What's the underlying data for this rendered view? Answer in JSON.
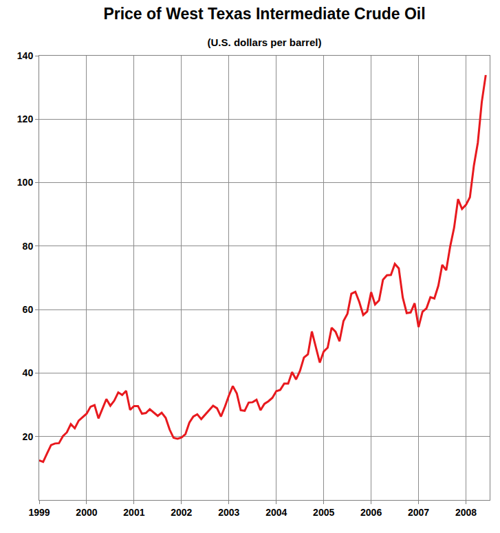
{
  "chart_data": {
    "type": "line",
    "title": "Price of West Texas Intermediate Crude Oil",
    "subtitle": "(U.S. dollars per barrel)",
    "x": [
      1999,
      1999.083,
      1999.167,
      1999.25,
      1999.333,
      1999.417,
      1999.5,
      1999.583,
      1999.667,
      1999.75,
      1999.833,
      1999.917,
      2000,
      2000.083,
      2000.167,
      2000.25,
      2000.333,
      2000.417,
      2000.5,
      2000.583,
      2000.667,
      2000.75,
      2000.833,
      2000.917,
      2001,
      2001.083,
      2001.167,
      2001.25,
      2001.333,
      2001.417,
      2001.5,
      2001.583,
      2001.667,
      2001.75,
      2001.833,
      2001.917,
      2002,
      2002.083,
      2002.167,
      2002.25,
      2002.333,
      2002.417,
      2002.5,
      2002.583,
      2002.667,
      2002.75,
      2002.833,
      2002.917,
      2003,
      2003.083,
      2003.167,
      2003.25,
      2003.333,
      2003.417,
      2003.5,
      2003.583,
      2003.667,
      2003.75,
      2003.833,
      2003.917,
      2004,
      2004.083,
      2004.167,
      2004.25,
      2004.333,
      2004.417,
      2004.5,
      2004.583,
      2004.667,
      2004.75,
      2004.833,
      2004.917,
      2005,
      2005.083,
      2005.167,
      2005.25,
      2005.333,
      2005.417,
      2005.5,
      2005.583,
      2005.667,
      2005.75,
      2005.833,
      2005.917,
      2006,
      2006.083,
      2006.167,
      2006.25,
      2006.333,
      2006.417,
      2006.5,
      2006.583,
      2006.667,
      2006.75,
      2006.833,
      2006.917,
      2007,
      2007.083,
      2007.167,
      2007.25,
      2007.333,
      2007.417,
      2007.5,
      2007.583,
      2007.667,
      2007.75,
      2007.833,
      2007.917,
      2008,
      2008.083,
      2008.167,
      2008.25,
      2008.333,
      2008.417
    ],
    "values": [
      12.5,
      12.0,
      14.7,
      17.3,
      17.8,
      17.9,
      20.1,
      21.3,
      23.9,
      22.6,
      25.0,
      26.1,
      27.2,
      29.4,
      29.9,
      25.7,
      28.8,
      31.8,
      29.7,
      31.3,
      33.9,
      33.1,
      34.4,
      28.4,
      29.6,
      29.6,
      27.2,
      27.4,
      28.6,
      27.6,
      26.5,
      27.5,
      25.9,
      22.2,
      19.6,
      19.3,
      19.7,
      20.7,
      24.4,
      26.3,
      27.0,
      25.5,
      26.9,
      28.4,
      29.7,
      28.9,
      26.3,
      29.4,
      32.9,
      35.9,
      33.6,
      28.3,
      28.1,
      30.7,
      30.8,
      31.6,
      28.3,
      30.3,
      31.1,
      32.2,
      34.3,
      34.7,
      36.7,
      36.7,
      40.3,
      38.0,
      40.7,
      44.9,
      45.9,
      53.1,
      48.5,
      43.3,
      46.8,
      48.0,
      54.3,
      53.0,
      50.0,
      56.4,
      58.7,
      65.0,
      65.6,
      62.4,
      58.3,
      59.4,
      65.5,
      61.6,
      62.9,
      69.4,
      70.8,
      70.9,
      74.4,
      73.0,
      63.8,
      58.9,
      59.1,
      62.0,
      54.5,
      59.3,
      60.4,
      63.9,
      63.5,
      67.5,
      74.1,
      72.4,
      79.9,
      85.8,
      94.8,
      91.7,
      93.0,
      95.4,
      105.4,
      112.6,
      125.4,
      133.9
    ],
    "color": "#e8191e",
    "xlim": [
      1999,
      2008.5
    ],
    "xticks": [
      1999,
      2000,
      2001,
      2002,
      2003,
      2004,
      2005,
      2006,
      2007,
      2008
    ],
    "ylim": [
      0,
      140
    ],
    "yticks": [
      20,
      40,
      60,
      80,
      100,
      120,
      140
    ],
    "grid": true
  }
}
